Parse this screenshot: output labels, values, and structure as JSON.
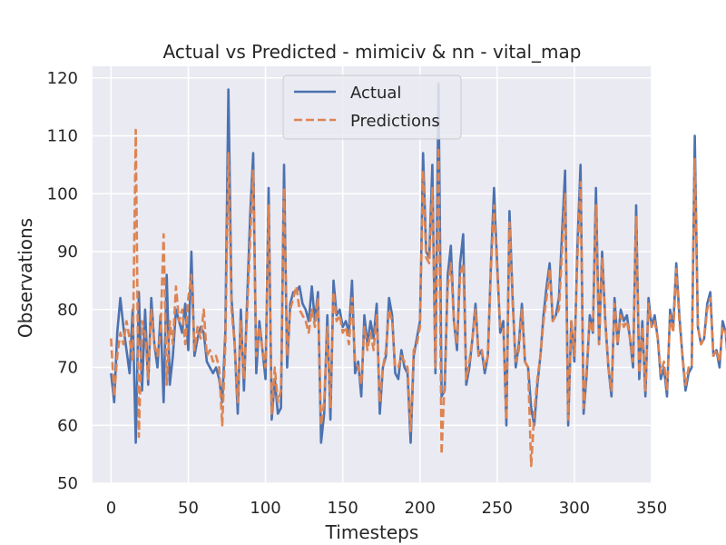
{
  "chart_data": {
    "type": "line",
    "title": "Actual vs Predicted - mimiciv & nn - vital_map",
    "xlabel": "Timesteps",
    "ylabel": "Observations",
    "xlim": [
      -12,
      350
    ],
    "ylim": [
      50,
      122
    ],
    "xticks": [
      0,
      50,
      100,
      150,
      200,
      250,
      300,
      350
    ],
    "yticks": [
      50,
      60,
      70,
      80,
      90,
      100,
      110,
      120
    ],
    "grid": true,
    "legend_position": "top-center",
    "x_step": 2,
    "series": [
      {
        "name": "Actual",
        "color": "#4c72b0",
        "style": "solid",
        "values": [
          69,
          64,
          76,
          82,
          77,
          73,
          69,
          80,
          57,
          83,
          66,
          80,
          67,
          82,
          74,
          70,
          79,
          64,
          86,
          67,
          72,
          80,
          78,
          76,
          81,
          73,
          90,
          72,
          75,
          77,
          76,
          71,
          70,
          69,
          70,
          68,
          64,
          76,
          118,
          82,
          74,
          62,
          80,
          66,
          81,
          96,
          107,
          69,
          78,
          73,
          68,
          101,
          61,
          68,
          62,
          63,
          105,
          70,
          81,
          83,
          83,
          84,
          81,
          80,
          78,
          84,
          78,
          83,
          57,
          62,
          79,
          61,
          85,
          79,
          80,
          77,
          78,
          76,
          85,
          69,
          71,
          65,
          79,
          74,
          78,
          75,
          81,
          62,
          70,
          72,
          82,
          79,
          69,
          68,
          73,
          70,
          69,
          57,
          72,
          75,
          78,
          107,
          90,
          89,
          105,
          69,
          119,
          65,
          66,
          86,
          91,
          78,
          73,
          88,
          93,
          67,
          70,
          75,
          81,
          72,
          73,
          69,
          72,
          88,
          101,
          88,
          76,
          78,
          60,
          97,
          82,
          70,
          74,
          81,
          71,
          70,
          63,
          60,
          67,
          72,
          79,
          84,
          88,
          78,
          79,
          82,
          93,
          104,
          60,
          78,
          71,
          91,
          105,
          62,
          69,
          79,
          76,
          101,
          74,
          90,
          78,
          70,
          65,
          82,
          74,
          80,
          78,
          79,
          75,
          70,
          98,
          68,
          78,
          65,
          82,
          77,
          79,
          75,
          68,
          70,
          65,
          80,
          77,
          88,
          79,
          72,
          66,
          69,
          70,
          110,
          77,
          74,
          75,
          81,
          83,
          72,
          73,
          70,
          78,
          76,
          69,
          68,
          76,
          79,
          86,
          80,
          80,
          88,
          78,
          88,
          84,
          63,
          67,
          73,
          70,
          72,
          66,
          70,
          81,
          72,
          79,
          76,
          73,
          91,
          86,
          90,
          65,
          79,
          112,
          100,
          92,
          76,
          68,
          65,
          75,
          77,
          80
        ]
      },
      {
        "name": "Predictions",
        "color": "#dd8452",
        "style": "dashed",
        "values": [
          75,
          65,
          72,
          76,
          74,
          78,
          75,
          71,
          111,
          58,
          78,
          76,
          68,
          80,
          74,
          72,
          76,
          93,
          67,
          78,
          74,
          84,
          78,
          80,
          74,
          82,
          86,
          73,
          77,
          75,
          80,
          72,
          73,
          71,
          72,
          70,
          60,
          74,
          107,
          80,
          74,
          64,
          78,
          68,
          79,
          92,
          104,
          72,
          77,
          73,
          70,
          98,
          62,
          70,
          64,
          66,
          101,
          72,
          80,
          82,
          84,
          80,
          79,
          78,
          76,
          80,
          77,
          82,
          60,
          64,
          77,
          63,
          83,
          78,
          79,
          76,
          77,
          74,
          82,
          71,
          70,
          67,
          77,
          73,
          76,
          73,
          79,
          64,
          70,
          73,
          80,
          78,
          70,
          70,
          72,
          71,
          70,
          59,
          73,
          74,
          77,
          104,
          89,
          88,
          101,
          70,
          108,
          55,
          68,
          84,
          88,
          78,
          74,
          86,
          88,
          68,
          71,
          75,
          80,
          72,
          73,
          70,
          72,
          87,
          98,
          87,
          77,
          77,
          61,
          95,
          81,
          71,
          73,
          80,
          71,
          70,
          53,
          62,
          68,
          72,
          78,
          82,
          87,
          78,
          79,
          80,
          90,
          100,
          61,
          78,
          72,
          89,
          102,
          63,
          70,
          78,
          76,
          98,
          74,
          89,
          78,
          70,
          66,
          81,
          74,
          79,
          77,
          78,
          75,
          71,
          96,
          69,
          77,
          66,
          81,
          77,
          78,
          75,
          69,
          71,
          66,
          79,
          76,
          87,
          78,
          72,
          67,
          70,
          70,
          106,
          77,
          74,
          75,
          80,
          82,
          72,
          73,
          71,
          77,
          76,
          70,
          69,
          75,
          78,
          84,
          80,
          80,
          86,
          77,
          87,
          83,
          64,
          68,
          73,
          71,
          72,
          67,
          71,
          80,
          72,
          78,
          76,
          73,
          89,
          85,
          88,
          66,
          78,
          100,
          99,
          90,
          77,
          70,
          63,
          75,
          77,
          81
        ]
      }
    ]
  }
}
